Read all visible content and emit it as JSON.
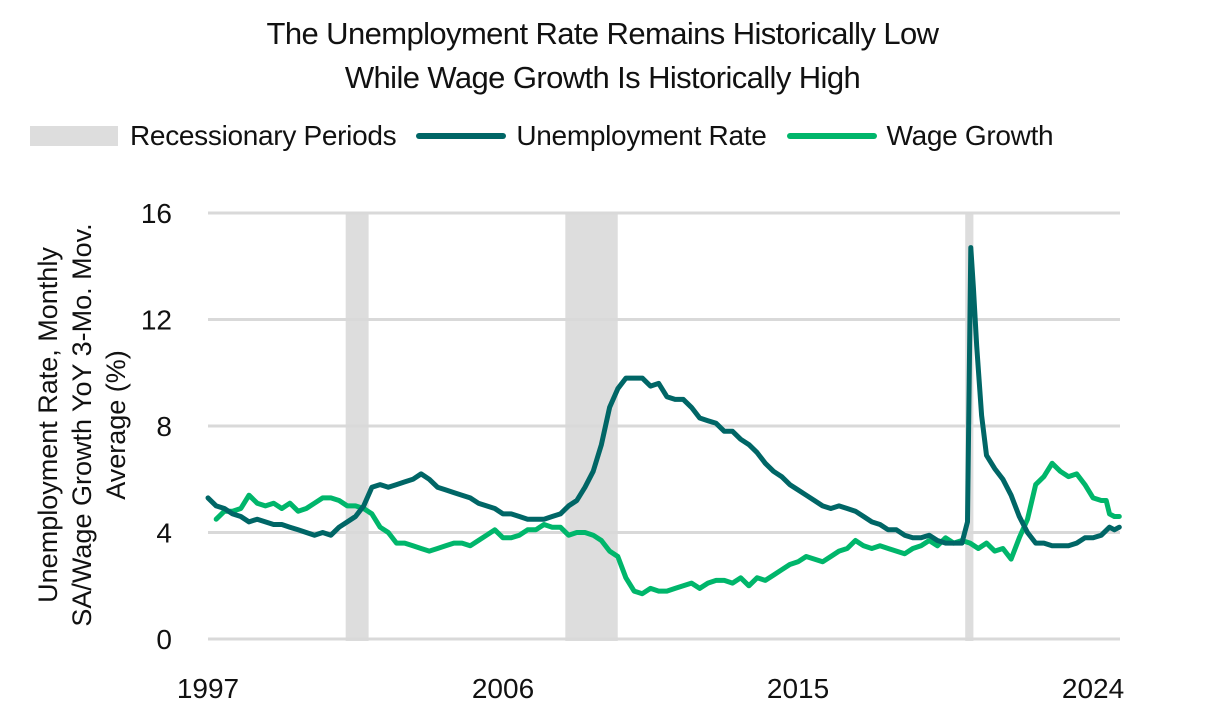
{
  "title_lines": [
    "The Unemployment Rate Remains Historically Low",
    "While Wage Growth Is Historically High"
  ],
  "legend": [
    {
      "label": "Recessionary Periods",
      "kind": "box",
      "color": "#dddddd"
    },
    {
      "label": "Unemployment Rate",
      "kind": "line",
      "color": "#006666"
    },
    {
      "label": "Wage Growth",
      "kind": "line",
      "color": "#00b66b"
    }
  ],
  "ylabel_lines": [
    "Unemployment Rate, Monthly",
    "SA/Wage Growth YoY 3-Mo. Mov.",
    "Average (%)"
  ],
  "chart_data": {
    "type": "line",
    "title": "The Unemployment Rate Remains Historically Low While Wage Growth Is Historically High",
    "xlabel": "",
    "ylabel": "Unemployment Rate, Monthly SA/Wage Growth YoY 3-Mo. Mov. Average (%)",
    "xlim": [
      1997,
      2024.8
    ],
    "ylim": [
      0,
      16
    ],
    "x_ticks": [
      "1997",
      "2006",
      "2015",
      "2024"
    ],
    "x_tick_values": [
      1997,
      2006,
      2015,
      2024
    ],
    "y_ticks": [
      0,
      4,
      8,
      12,
      16
    ],
    "grid": "horizontal",
    "legend_position": "top",
    "recessions": [
      {
        "start": 2001.2,
        "end": 2001.9
      },
      {
        "start": 2007.9,
        "end": 2009.5
      },
      {
        "start": 2020.1,
        "end": 2020.35
      }
    ],
    "series": [
      {
        "name": "Unemployment Rate",
        "color": "#006666",
        "points": [
          [
            1997.0,
            5.3
          ],
          [
            1997.25,
            5.0
          ],
          [
            1997.5,
            4.9
          ],
          [
            1997.75,
            4.7
          ],
          [
            1998.0,
            4.6
          ],
          [
            1998.25,
            4.4
          ],
          [
            1998.5,
            4.5
          ],
          [
            1998.75,
            4.4
          ],
          [
            1999.0,
            4.3
          ],
          [
            1999.25,
            4.3
          ],
          [
            1999.5,
            4.2
          ],
          [
            1999.75,
            4.1
          ],
          [
            2000.0,
            4.0
          ],
          [
            2000.25,
            3.9
          ],
          [
            2000.5,
            4.0
          ],
          [
            2000.75,
            3.9
          ],
          [
            2001.0,
            4.2
          ],
          [
            2001.25,
            4.4
          ],
          [
            2001.5,
            4.6
          ],
          [
            2001.75,
            5.0
          ],
          [
            2002.0,
            5.7
          ],
          [
            2002.25,
            5.8
          ],
          [
            2002.5,
            5.7
          ],
          [
            2002.75,
            5.8
          ],
          [
            2003.0,
            5.9
          ],
          [
            2003.25,
            6.0
          ],
          [
            2003.5,
            6.2
          ],
          [
            2003.75,
            6.0
          ],
          [
            2004.0,
            5.7
          ],
          [
            2004.25,
            5.6
          ],
          [
            2004.5,
            5.5
          ],
          [
            2004.75,
            5.4
          ],
          [
            2005.0,
            5.3
          ],
          [
            2005.25,
            5.1
          ],
          [
            2005.5,
            5.0
          ],
          [
            2005.75,
            4.9
          ],
          [
            2006.0,
            4.7
          ],
          [
            2006.25,
            4.7
          ],
          [
            2006.5,
            4.6
          ],
          [
            2006.75,
            4.5
          ],
          [
            2007.0,
            4.5
          ],
          [
            2007.25,
            4.5
          ],
          [
            2007.5,
            4.6
          ],
          [
            2007.75,
            4.7
          ],
          [
            2008.0,
            5.0
          ],
          [
            2008.25,
            5.2
          ],
          [
            2008.5,
            5.7
          ],
          [
            2008.75,
            6.3
          ],
          [
            2009.0,
            7.3
          ],
          [
            2009.25,
            8.7
          ],
          [
            2009.5,
            9.4
          ],
          [
            2009.75,
            9.8
          ],
          [
            2010.0,
            9.8
          ],
          [
            2010.25,
            9.8
          ],
          [
            2010.5,
            9.5
          ],
          [
            2010.75,
            9.6
          ],
          [
            2011.0,
            9.1
          ],
          [
            2011.25,
            9.0
          ],
          [
            2011.5,
            9.0
          ],
          [
            2011.75,
            8.7
          ],
          [
            2012.0,
            8.3
          ],
          [
            2012.25,
            8.2
          ],
          [
            2012.5,
            8.1
          ],
          [
            2012.75,
            7.8
          ],
          [
            2013.0,
            7.8
          ],
          [
            2013.25,
            7.5
          ],
          [
            2013.5,
            7.3
          ],
          [
            2013.75,
            7.0
          ],
          [
            2014.0,
            6.6
          ],
          [
            2014.25,
            6.3
          ],
          [
            2014.5,
            6.1
          ],
          [
            2014.75,
            5.8
          ],
          [
            2015.0,
            5.6
          ],
          [
            2015.25,
            5.4
          ],
          [
            2015.5,
            5.2
          ],
          [
            2015.75,
            5.0
          ],
          [
            2016.0,
            4.9
          ],
          [
            2016.25,
            5.0
          ],
          [
            2016.5,
            4.9
          ],
          [
            2016.75,
            4.8
          ],
          [
            2017.0,
            4.6
          ],
          [
            2017.25,
            4.4
          ],
          [
            2017.5,
            4.3
          ],
          [
            2017.75,
            4.1
          ],
          [
            2018.0,
            4.1
          ],
          [
            2018.25,
            3.9
          ],
          [
            2018.5,
            3.8
          ],
          [
            2018.75,
            3.8
          ],
          [
            2019.0,
            3.9
          ],
          [
            2019.25,
            3.7
          ],
          [
            2019.5,
            3.6
          ],
          [
            2019.75,
            3.6
          ],
          [
            2020.0,
            3.6
          ],
          [
            2020.17,
            4.4
          ],
          [
            2020.27,
            14.7
          ],
          [
            2020.35,
            13.2
          ],
          [
            2020.45,
            11.0
          ],
          [
            2020.6,
            8.4
          ],
          [
            2020.75,
            6.9
          ],
          [
            2021.0,
            6.4
          ],
          [
            2021.25,
            6.0
          ],
          [
            2021.5,
            5.4
          ],
          [
            2021.75,
            4.6
          ],
          [
            2022.0,
            4.0
          ],
          [
            2022.25,
            3.6
          ],
          [
            2022.5,
            3.6
          ],
          [
            2022.75,
            3.5
          ],
          [
            2023.0,
            3.5
          ],
          [
            2023.25,
            3.5
          ],
          [
            2023.5,
            3.6
          ],
          [
            2023.75,
            3.8
          ],
          [
            2024.0,
            3.8
          ],
          [
            2024.25,
            3.9
          ],
          [
            2024.5,
            4.2
          ],
          [
            2024.65,
            4.1
          ],
          [
            2024.8,
            4.2
          ]
        ]
      },
      {
        "name": "Wage Growth",
        "color": "#00b66b",
        "points": [
          [
            1997.25,
            4.5
          ],
          [
            1997.5,
            4.8
          ],
          [
            1997.75,
            4.8
          ],
          [
            1998.0,
            4.9
          ],
          [
            1998.25,
            5.4
          ],
          [
            1998.5,
            5.1
          ],
          [
            1998.75,
            5.0
          ],
          [
            1999.0,
            5.1
          ],
          [
            1999.25,
            4.9
          ],
          [
            1999.5,
            5.1
          ],
          [
            1999.75,
            4.8
          ],
          [
            2000.0,
            4.9
          ],
          [
            2000.25,
            5.1
          ],
          [
            2000.5,
            5.3
          ],
          [
            2000.75,
            5.3
          ],
          [
            2001.0,
            5.2
          ],
          [
            2001.25,
            5.0
          ],
          [
            2001.5,
            5.0
          ],
          [
            2001.75,
            4.9
          ],
          [
            2002.0,
            4.7
          ],
          [
            2002.25,
            4.2
          ],
          [
            2002.5,
            4.0
          ],
          [
            2002.75,
            3.6
          ],
          [
            2003.0,
            3.6
          ],
          [
            2003.25,
            3.5
          ],
          [
            2003.5,
            3.4
          ],
          [
            2003.75,
            3.3
          ],
          [
            2004.0,
            3.4
          ],
          [
            2004.25,
            3.5
          ],
          [
            2004.5,
            3.6
          ],
          [
            2004.75,
            3.6
          ],
          [
            2005.0,
            3.5
          ],
          [
            2005.25,
            3.7
          ],
          [
            2005.5,
            3.9
          ],
          [
            2005.75,
            4.1
          ],
          [
            2006.0,
            3.8
          ],
          [
            2006.25,
            3.8
          ],
          [
            2006.5,
            3.9
          ],
          [
            2006.75,
            4.1
          ],
          [
            2007.0,
            4.1
          ],
          [
            2007.25,
            4.3
          ],
          [
            2007.5,
            4.2
          ],
          [
            2007.75,
            4.2
          ],
          [
            2008.0,
            3.9
          ],
          [
            2008.25,
            4.0
          ],
          [
            2008.5,
            4.0
          ],
          [
            2008.75,
            3.9
          ],
          [
            2009.0,
            3.7
          ],
          [
            2009.25,
            3.3
          ],
          [
            2009.5,
            3.1
          ],
          [
            2009.75,
            2.3
          ],
          [
            2010.0,
            1.8
          ],
          [
            2010.25,
            1.7
          ],
          [
            2010.5,
            1.9
          ],
          [
            2010.75,
            1.8
          ],
          [
            2011.0,
            1.8
          ],
          [
            2011.25,
            1.9
          ],
          [
            2011.5,
            2.0
          ],
          [
            2011.75,
            2.1
          ],
          [
            2012.0,
            1.9
          ],
          [
            2012.25,
            2.1
          ],
          [
            2012.5,
            2.2
          ],
          [
            2012.75,
            2.2
          ],
          [
            2013.0,
            2.1
          ],
          [
            2013.25,
            2.3
          ],
          [
            2013.5,
            2.0
          ],
          [
            2013.75,
            2.3
          ],
          [
            2014.0,
            2.2
          ],
          [
            2014.25,
            2.4
          ],
          [
            2014.5,
            2.6
          ],
          [
            2014.75,
            2.8
          ],
          [
            2015.0,
            2.9
          ],
          [
            2015.25,
            3.1
          ],
          [
            2015.5,
            3.0
          ],
          [
            2015.75,
            2.9
          ],
          [
            2016.0,
            3.1
          ],
          [
            2016.25,
            3.3
          ],
          [
            2016.5,
            3.4
          ],
          [
            2016.75,
            3.7
          ],
          [
            2017.0,
            3.5
          ],
          [
            2017.25,
            3.4
          ],
          [
            2017.5,
            3.5
          ],
          [
            2017.75,
            3.4
          ],
          [
            2018.0,
            3.3
          ],
          [
            2018.25,
            3.2
          ],
          [
            2018.5,
            3.4
          ],
          [
            2018.75,
            3.5
          ],
          [
            2019.0,
            3.7
          ],
          [
            2019.25,
            3.5
          ],
          [
            2019.5,
            3.8
          ],
          [
            2019.75,
            3.6
          ],
          [
            2020.0,
            3.7
          ],
          [
            2020.25,
            3.6
          ],
          [
            2020.5,
            3.4
          ],
          [
            2020.75,
            3.6
          ],
          [
            2021.0,
            3.3
          ],
          [
            2021.25,
            3.4
          ],
          [
            2021.5,
            3.0
          ],
          [
            2021.75,
            3.8
          ],
          [
            2022.0,
            4.5
          ],
          [
            2022.25,
            5.8
          ],
          [
            2022.5,
            6.1
          ],
          [
            2022.75,
            6.6
          ],
          [
            2023.0,
            6.3
          ],
          [
            2023.25,
            6.1
          ],
          [
            2023.5,
            6.2
          ],
          [
            2023.75,
            5.8
          ],
          [
            2024.0,
            5.3
          ],
          [
            2024.25,
            5.2
          ],
          [
            2024.4,
            5.2
          ],
          [
            2024.5,
            4.7
          ],
          [
            2024.65,
            4.6
          ],
          [
            2024.8,
            4.6
          ]
        ]
      }
    ]
  }
}
